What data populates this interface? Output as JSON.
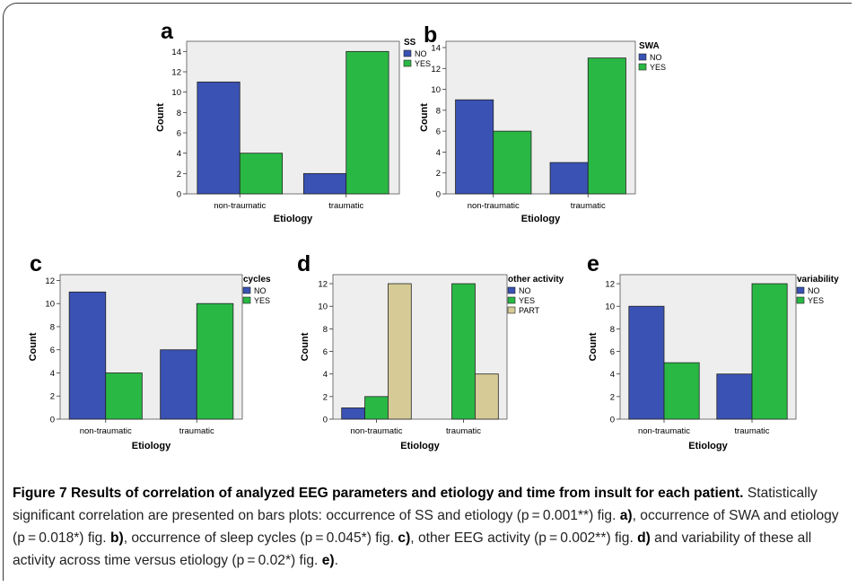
{
  "caption": {
    "title": "Figure 7 Results of correlation of analyzed EEG parameters and etiology and time from insult for each patient.",
    "body_1": " Statistically significant correlation are presented on bars plots: occurrence of SS and etiology (p = 0.001**) fig. ",
    "ref_a": "a)",
    "body_2": ", occurrence of SWA and etiology (p = 0.018*) fig. ",
    "ref_b": "b)",
    "body_3": ", occurrence of sleep cycles (p = 0.045*) fig. ",
    "ref_c": "c)",
    "body_4": ", other EEG activity (p = 0.002**) fig. ",
    "ref_d": "d)",
    "body_5": " and variability of these all activity across time versus etiology (p = 0.02*) fig. ",
    "ref_e": "e)",
    "body_6": "."
  },
  "colors": {
    "NO": "#3a52b4",
    "YES": "#2ab845",
    "PART": "#d6cb96",
    "plot_bg": "#eeeeee"
  },
  "chart_data": [
    {
      "id": "a",
      "type": "bar",
      "panel_label": "a",
      "categories": [
        "non-traumatic",
        "traumatic"
      ],
      "series": [
        {
          "name": "NO",
          "values": [
            11,
            2
          ]
        },
        {
          "name": "YES",
          "values": [
            4,
            14
          ]
        }
      ],
      "xlabel": "Etiology",
      "ylabel": "Count",
      "legend_title": "SS",
      "ylim": [
        0,
        15
      ],
      "yticks": [
        0,
        2,
        4,
        6,
        8,
        10,
        12,
        14
      ],
      "legend": "right"
    },
    {
      "id": "b",
      "type": "bar",
      "panel_label": "b",
      "categories": [
        "non-traumatic",
        "traumatic"
      ],
      "series": [
        {
          "name": "NO",
          "values": [
            9,
            3
          ]
        },
        {
          "name": "YES",
          "values": [
            6,
            13
          ]
        }
      ],
      "xlabel": "Etiology",
      "ylabel": "Count",
      "legend_title": "SWA",
      "ylim": [
        0,
        14.6
      ],
      "yticks": [
        0,
        2,
        4,
        6,
        8,
        10,
        12,
        14
      ],
      "legend": "right"
    },
    {
      "id": "c",
      "type": "bar",
      "panel_label": "c",
      "categories": [
        "non-traumatic",
        "traumatic"
      ],
      "series": [
        {
          "name": "NO",
          "values": [
            11,
            6
          ]
        },
        {
          "name": "YES",
          "values": [
            4,
            10
          ]
        }
      ],
      "xlabel": "Etiology",
      "ylabel": "Count",
      "legend_title": "cycles",
      "ylim": [
        0,
        12.5
      ],
      "yticks": [
        0,
        2,
        4,
        6,
        8,
        10,
        12
      ],
      "legend": "right"
    },
    {
      "id": "d",
      "type": "bar",
      "panel_label": "d",
      "categories": [
        "non-traumatic",
        "traumatic"
      ],
      "series": [
        {
          "name": "NO",
          "values": [
            1,
            0
          ]
        },
        {
          "name": "YES",
          "values": [
            2,
            12
          ]
        },
        {
          "name": "PART",
          "values": [
            12,
            4
          ]
        }
      ],
      "xlabel": "Etiology",
      "ylabel": "Count",
      "legend_title": "other activity",
      "ylim": [
        0,
        12.8
      ],
      "yticks": [
        0,
        2,
        4,
        6,
        8,
        10,
        12
      ],
      "legend": "right"
    },
    {
      "id": "e",
      "type": "bar",
      "panel_label": "e",
      "categories": [
        "non-traumatic",
        "traumatic"
      ],
      "series": [
        {
          "name": "NO",
          "values": [
            10,
            4
          ]
        },
        {
          "name": "YES",
          "values": [
            5,
            12
          ]
        }
      ],
      "xlabel": "Etiology",
      "ylabel": "Count",
      "legend_title": "variability",
      "ylim": [
        0,
        12.8
      ],
      "yticks": [
        0,
        2,
        4,
        6,
        8,
        10,
        12
      ],
      "legend": "right"
    }
  ]
}
